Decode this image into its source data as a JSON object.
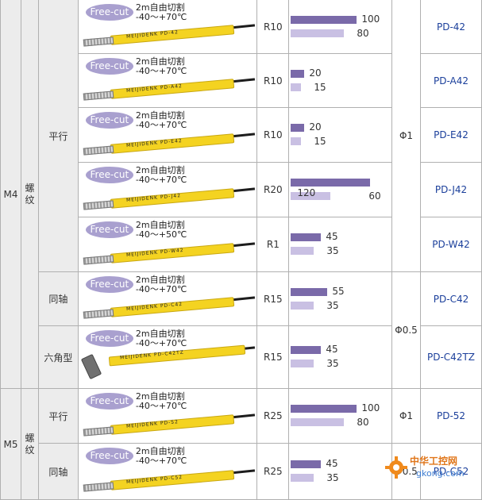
{
  "table": {
    "size_m4": "M4",
    "size_m5": "M5",
    "thread_label": "螺纹",
    "groups": {
      "parallel": "平行",
      "coaxial": "同轴",
      "hex": "六角型",
      "parallel_m5": "平行",
      "coaxial_m5": "同轴"
    },
    "diameters": {
      "phi1": "Φ1",
      "phi05": "Φ0.5",
      "phi1_m5": "Φ1",
      "phi05_m5": "Φ0.5"
    },
    "rows": [
      {
        "logo": "Free-cut",
        "spec_line1": "2m自由切割",
        "spec_line2": "-40～+70℃",
        "tube_text": "MEIJIDENK  PD-42",
        "radius": "R10",
        "dark_value": 100,
        "light_value": 80,
        "dark_label": "100",
        "light_label": "80",
        "model": "PD-42"
      },
      {
        "logo": "Free-cut",
        "spec_line1": "2m自由切割",
        "spec_line2": "-40～+70℃",
        "tube_text": "MEIJIDENK  PD-A42",
        "radius": "R10",
        "dark_value": 20,
        "light_value": 15,
        "dark_label": "20",
        "light_label": "15",
        "model": "PD-A42"
      },
      {
        "logo": "Free-cut",
        "spec_line1": "2m自由切割",
        "spec_line2": "-40～+70℃",
        "tube_text": "MEIJIDENK  PD-E42",
        "radius": "R10",
        "dark_value": 20,
        "light_value": 15,
        "dark_label": "20",
        "light_label": "15",
        "model": "PD-E42"
      },
      {
        "logo": "Free-cut",
        "spec_line1": "2m自由切割",
        "spec_line2": "-40～+70℃",
        "tube_text": "MEIJIDENK  PD-J42",
        "radius": "R20",
        "dark_value": 120,
        "light_value": 60,
        "dark_label": "120",
        "light_label": "60",
        "model": "PD-J42"
      },
      {
        "logo": "Free-cut",
        "spec_line1": "2m自由切割",
        "spec_line2": "-40～+50℃",
        "tube_text": "MEIJIDENK  PD-W42",
        "radius": "R1",
        "dark_value": 45,
        "light_value": 35,
        "dark_label": "45",
        "light_label": "35",
        "model": "PD-W42"
      },
      {
        "logo": "Free-cut",
        "spec_line1": "2m自由切割",
        "spec_line2": "-40～+70℃",
        "tube_text": "MEIJIDENK  PD-C42",
        "radius": "R15",
        "dark_value": 55,
        "light_value": 35,
        "dark_label": "55",
        "light_label": "35",
        "model": "PD-C42"
      },
      {
        "logo": "Free-cut",
        "spec_line1": "2m自由切割",
        "spec_line2": "-40～+70℃",
        "tube_text": "MEIJIDENK  PD-C42TZ",
        "radius": "R15",
        "dark_value": 45,
        "light_value": 35,
        "dark_label": "45",
        "light_label": "35",
        "model": "PD-C42TZ"
      },
      {
        "logo": "Free-cut",
        "spec_line1": "2m自由切割",
        "spec_line2": "-40～+70℃",
        "tube_text": "MEIJIDENK  PD-52",
        "radius": "R25",
        "dark_value": 100,
        "light_value": 80,
        "dark_label": "100",
        "light_label": "80",
        "model": "PD-52"
      },
      {
        "logo": "Free-cut",
        "spec_line1": "2m自由切割",
        "spec_line2": "-40～+70℃",
        "tube_text": "MEIJIDENK  PD-C52",
        "radius": "R25",
        "dark_value": 45,
        "light_value": 35,
        "dark_label": "45",
        "light_label": "35",
        "model": "PD-C52"
      }
    ],
    "bar_max": 120
  },
  "watermark": {
    "title": "中华工控网",
    "url": "gkong.com"
  },
  "colors": {
    "dark_bar": "#7a6aa9",
    "light_bar": "#c9c0e3",
    "tube": "#f4d321",
    "link": "#1b3f9b",
    "logo": "#a9a0cf"
  }
}
